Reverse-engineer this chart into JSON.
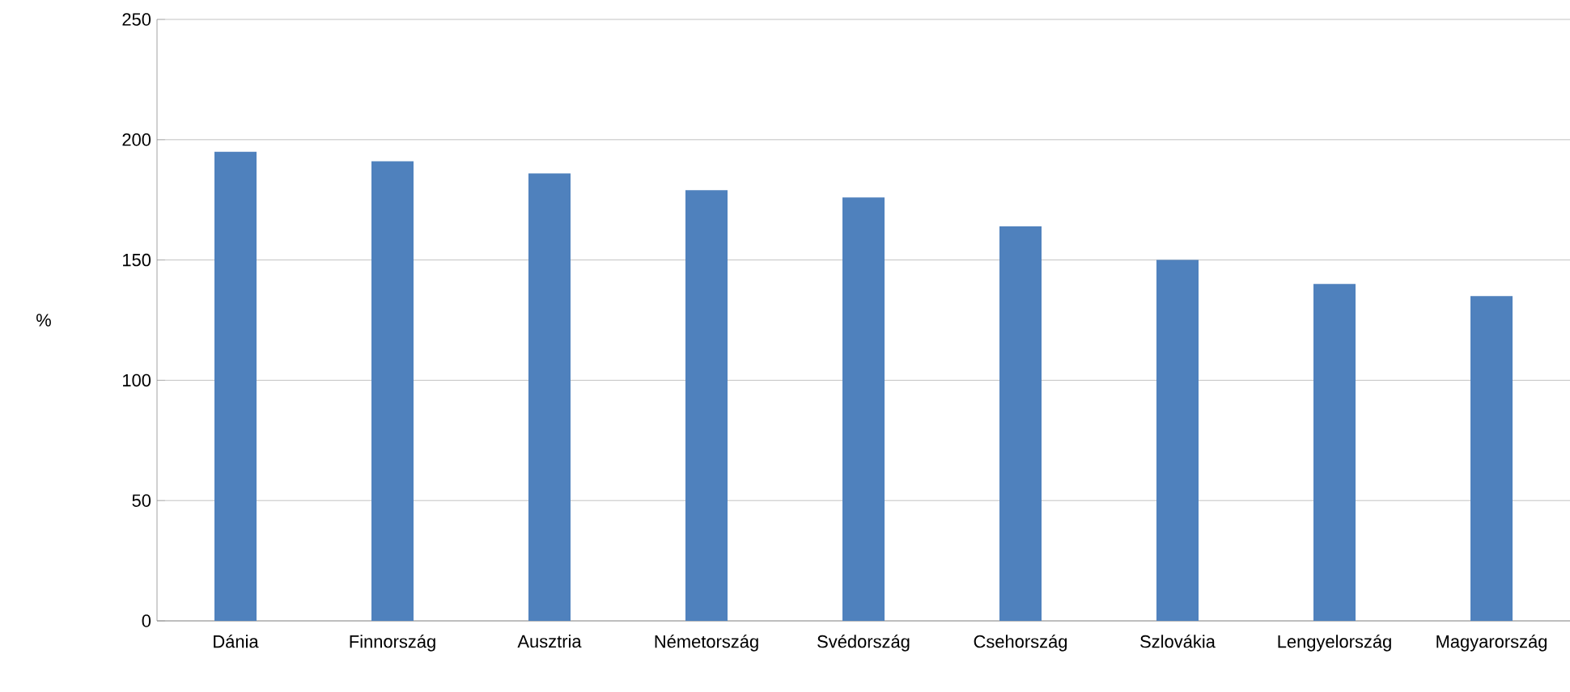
{
  "chart_data": {
    "type": "bar",
    "ylabel": "%",
    "categories": [
      "Dánia",
      "Finnország",
      "Ausztria",
      "Németország",
      "Svédország",
      "Csehország",
      "Szlovákia",
      "Lengyelország",
      "Magyarország"
    ],
    "values": [
      195,
      191,
      186,
      179,
      176,
      164,
      150,
      140,
      135
    ],
    "color": "#4f81bd",
    "ylim": [
      0,
      250
    ],
    "yticks": [
      0,
      50,
      100,
      150,
      200,
      250
    ],
    "grid": "y"
  }
}
